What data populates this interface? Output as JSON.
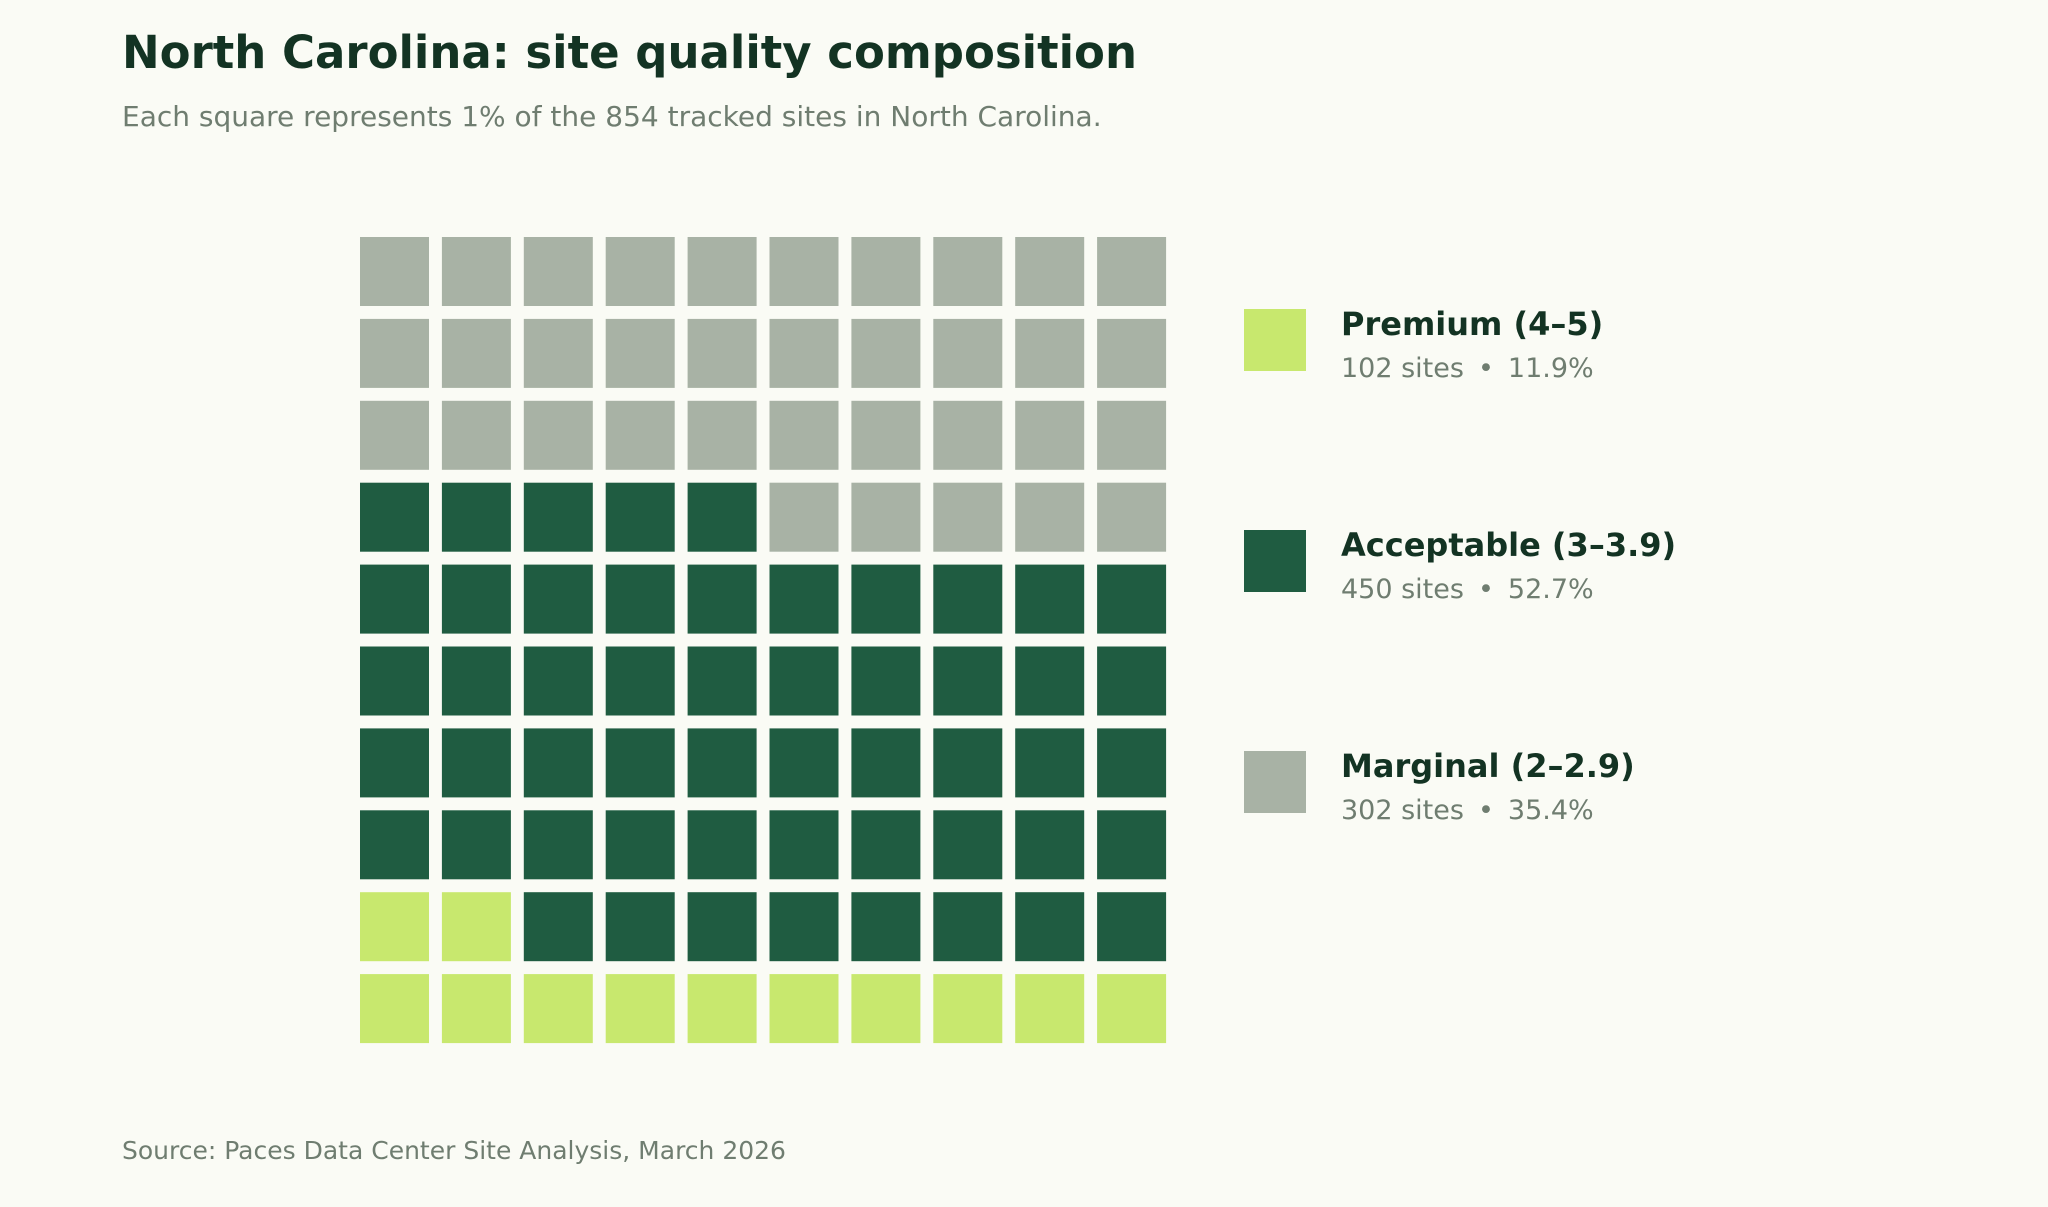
{
  "colors": {
    "background": "#fafbf5",
    "premium": "#c8e86e",
    "acceptable": "#1f5c41",
    "marginal": "#a8b2a5"
  },
  "chart_data": {
    "type": "waffle",
    "title": "North Carolina: site quality composition",
    "subtitle": "Each square represents 1% of the 854 tracked sites in North Carolina.",
    "source": "Source: Paces Data Center Site Analysis, March 2026",
    "grid": {
      "rows": 10,
      "cols": 10
    },
    "total_sites": 854,
    "legend_position": "right",
    "series": [
      {
        "name": "Premium (4–5)",
        "sites": 102,
        "percent": 11.9,
        "squares": 12,
        "sites_label": "102 sites",
        "percent_label": "11.9%",
        "color": "#c8e86e"
      },
      {
        "name": "Acceptable (3–3.9)",
        "sites": 450,
        "percent": 52.7,
        "squares": 53,
        "sites_label": "450 sites",
        "percent_label": "52.7%",
        "color": "#1f5c41"
      },
      {
        "name": "Marginal (2–2.9)",
        "sites": 302,
        "percent": 35.4,
        "squares": 35,
        "sites_label": "302 sites",
        "percent_label": "35.4%",
        "color": "#a8b2a5"
      }
    ]
  }
}
